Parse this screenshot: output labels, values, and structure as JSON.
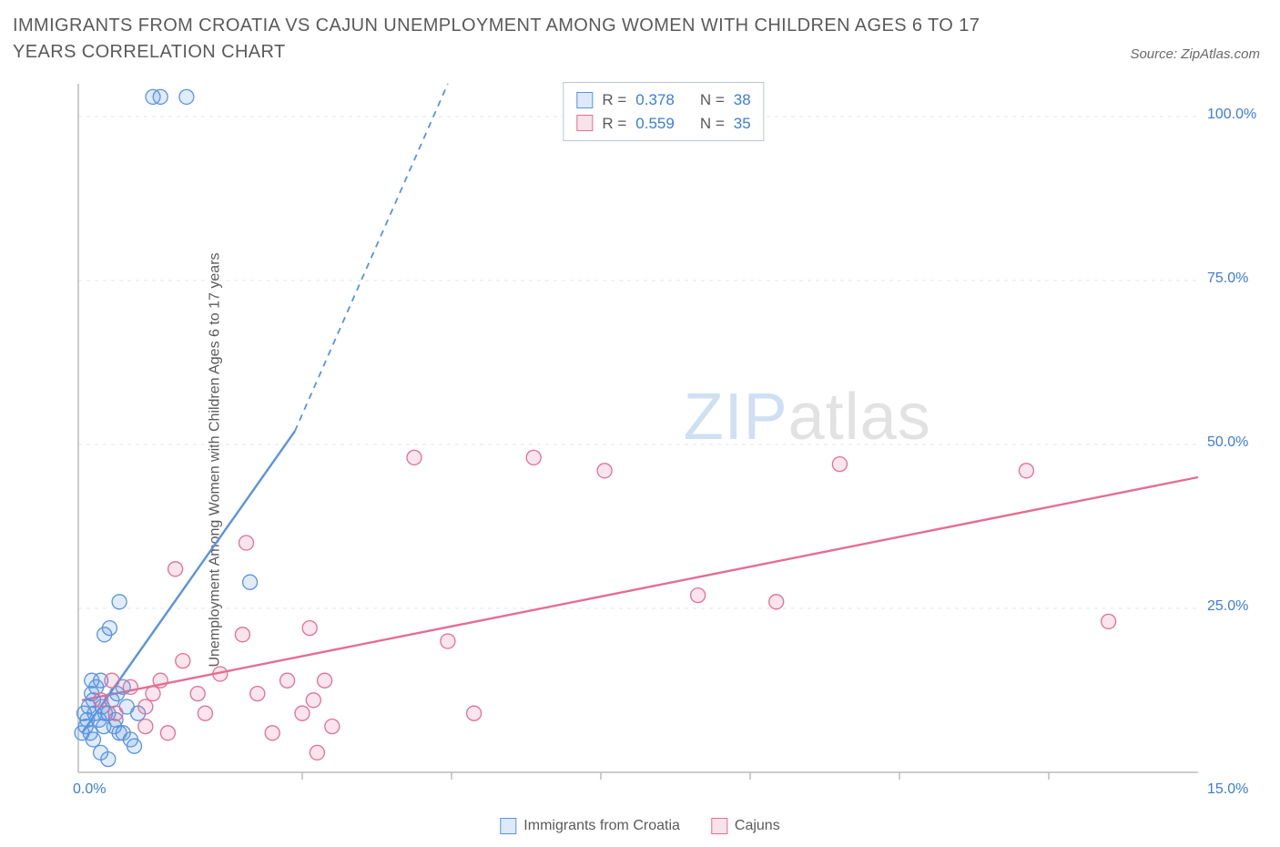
{
  "title": "IMMIGRANTS FROM CROATIA VS CAJUN UNEMPLOYMENT AMONG WOMEN WITH CHILDREN AGES 6 TO 17 YEARS CORRELATION CHART",
  "source": "Source: ZipAtlas.com",
  "y_axis_label": "Unemployment Among Women with Children Ages 6 to 17 years",
  "watermark": {
    "part1": "ZIP",
    "part2": "atlas"
  },
  "chart": {
    "type": "scatter",
    "background_color": "#ffffff",
    "grid_color": "#e6e6e6",
    "axis_line_color": "#bcbcbc",
    "tick_mark_color": "#bcbcbc",
    "tick_label_color": "#3b7dd8",
    "tick_label_fontsize": 16,
    "axis_label_color": "#5a5a5a",
    "axis_label_fontsize": 16,
    "title_color": "#5a5a5a",
    "title_fontsize": 20,
    "xlim": [
      0,
      15
    ],
    "ylim": [
      0,
      105
    ],
    "x_tick_origin_label": "0.0%",
    "x_tick_end_label": "15.0%",
    "x_tick_positions": [
      3,
      5,
      7,
      9,
      11,
      13
    ],
    "y_ticks": [
      {
        "value": 25,
        "label": "25.0%"
      },
      {
        "value": 50,
        "label": "50.0%"
      },
      {
        "value": 75,
        "label": "75.0%"
      },
      {
        "value": 100,
        "label": "100.0%"
      }
    ],
    "marker_radius": 8,
    "marker_fill_opacity": 0.18,
    "marker_stroke_width": 1.3,
    "trend_line_width": 2.4,
    "trend_dash_pattern": "7,6"
  },
  "series": [
    {
      "key": "croatia",
      "label": "Immigrants from Croatia",
      "color_stroke": "#5a93df",
      "color_fill": "#5a93df",
      "R": "0.378",
      "N": "38",
      "trend": {
        "solid": {
          "x1": 0.05,
          "y1": 6,
          "x2": 2.9,
          "y2": 52
        },
        "dashed": {
          "x1": 2.9,
          "y1": 52,
          "x2": 4.95,
          "y2": 105
        }
      },
      "points": [
        [
          0.05,
          6
        ],
        [
          0.08,
          9
        ],
        [
          0.1,
          7
        ],
        [
          0.12,
          8
        ],
        [
          0.14,
          10
        ],
        [
          0.16,
          6
        ],
        [
          0.18,
          12
        ],
        [
          0.2,
          11
        ],
        [
          0.22,
          9
        ],
        [
          0.24,
          13
        ],
        [
          0.28,
          8
        ],
        [
          0.3,
          14
        ],
        [
          0.32,
          10
        ],
        [
          0.34,
          7
        ],
        [
          0.4,
          9
        ],
        [
          0.45,
          11
        ],
        [
          0.5,
          8
        ],
        [
          0.55,
          6
        ],
        [
          0.6,
          13
        ],
        [
          0.65,
          10
        ],
        [
          0.7,
          5
        ],
        [
          0.75,
          4
        ],
        [
          0.8,
          9
        ],
        [
          0.3,
          3
        ],
        [
          0.4,
          2
        ],
        [
          0.2,
          5
        ],
        [
          0.6,
          6
        ],
        [
          0.48,
          7
        ],
        [
          0.36,
          9
        ],
        [
          0.52,
          12
        ],
        [
          0.42,
          22
        ],
        [
          0.55,
          26
        ],
        [
          0.35,
          21
        ],
        [
          2.3,
          29
        ],
        [
          1.0,
          103
        ],
        [
          1.1,
          103
        ],
        [
          1.45,
          103
        ],
        [
          0.18,
          14
        ]
      ]
    },
    {
      "key": "cajuns",
      "label": "Cajuns",
      "color_stroke": "#e36f93",
      "color_fill": "#e36f93",
      "R": "0.559",
      "N": "35",
      "trend": {
        "solid": {
          "x1": 0.05,
          "y1": 11,
          "x2": 15.0,
          "y2": 45
        },
        "dashed": null
      },
      "points": [
        [
          0.3,
          11
        ],
        [
          0.5,
          9
        ],
        [
          0.7,
          13
        ],
        [
          0.9,
          10
        ],
        [
          1.1,
          14
        ],
        [
          1.2,
          6
        ],
        [
          1.4,
          17
        ],
        [
          1.3,
          31
        ],
        [
          1.6,
          12
        ],
        [
          1.7,
          9
        ],
        [
          1.9,
          15
        ],
        [
          2.2,
          21
        ],
        [
          2.4,
          12
        ],
        [
          2.6,
          6
        ],
        [
          2.8,
          14
        ],
        [
          3.0,
          9
        ],
        [
          3.1,
          22
        ],
        [
          3.15,
          11
        ],
        [
          3.2,
          3
        ],
        [
          3.3,
          14
        ],
        [
          3.4,
          7
        ],
        [
          2.25,
          35
        ],
        [
          4.5,
          48
        ],
        [
          4.95,
          20
        ],
        [
          5.3,
          9
        ],
        [
          6.1,
          48
        ],
        [
          7.05,
          46
        ],
        [
          8.3,
          27
        ],
        [
          9.35,
          26
        ],
        [
          10.2,
          47
        ],
        [
          12.7,
          46
        ],
        [
          13.8,
          23
        ],
        [
          0.9,
          7
        ],
        [
          1.0,
          12
        ],
        [
          0.45,
          14
        ]
      ]
    }
  ],
  "legend_stats": {
    "R_label_prefix": "R = ",
    "N_label_prefix": "N = "
  }
}
